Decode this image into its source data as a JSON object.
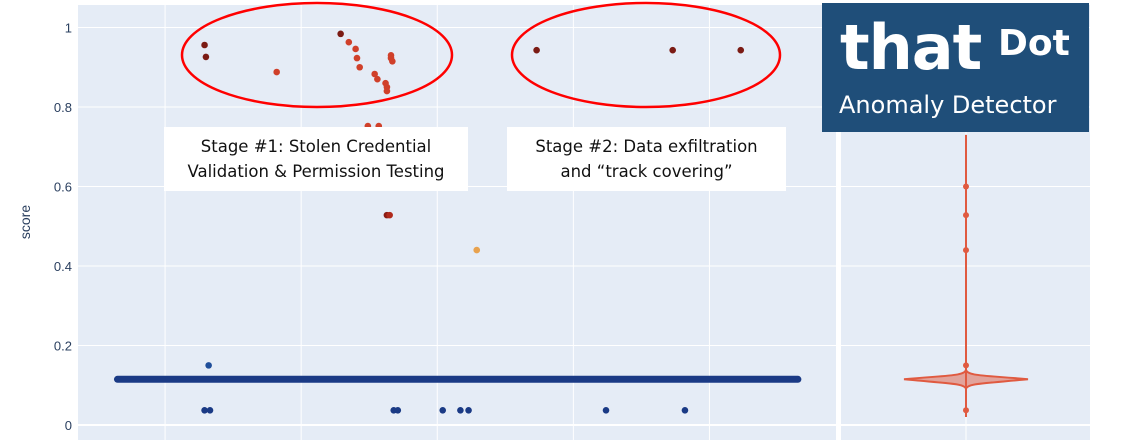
{
  "chart_data": [
    {
      "type": "scatter",
      "ylabel": "score",
      "ylim": [
        0,
        1.05
      ],
      "xlim": [
        -0.64,
        4.93
      ],
      "yticks": [
        "0",
        "0.2",
        "0.4",
        "0.6",
        "0.8",
        "1"
      ],
      "xgrid": [
        0,
        1,
        2,
        3,
        4
      ],
      "grid": true,
      "background": "#e5ecf6",
      "dense_band": {
        "y": 0.115,
        "x_from": -0.35,
        "x_to": 4.65,
        "color": "#1a3a85"
      },
      "points": [
        {
          "x": 0.29,
          "y": 0.956,
          "c": "#7b1b14"
        },
        {
          "x": 0.3,
          "y": 0.926,
          "c": "#7b1b14"
        },
        {
          "x": 1.29,
          "y": 0.984,
          "c": "#7b1b14"
        },
        {
          "x": 2.73,
          "y": 0.943,
          "c": "#7b1b14"
        },
        {
          "x": 3.73,
          "y": 0.943,
          "c": "#7b1b14"
        },
        {
          "x": 4.23,
          "y": 0.943,
          "c": "#7b1b14"
        },
        {
          "x": 0.82,
          "y": 0.888,
          "c": "#d0402a"
        },
        {
          "x": 1.35,
          "y": 0.963,
          "c": "#d0402a"
        },
        {
          "x": 1.4,
          "y": 0.946,
          "c": "#d0402a"
        },
        {
          "x": 1.41,
          "y": 0.923,
          "c": "#d0402a"
        },
        {
          "x": 1.43,
          "y": 0.9,
          "c": "#d0402a"
        },
        {
          "x": 1.54,
          "y": 0.883,
          "c": "#d0402a"
        },
        {
          "x": 1.56,
          "y": 0.87,
          "c": "#d0402a"
        },
        {
          "x": 1.62,
          "y": 0.86,
          "c": "#d0402a"
        },
        {
          "x": 1.63,
          "y": 0.85,
          "c": "#d0402a"
        },
        {
          "x": 1.63,
          "y": 0.84,
          "c": "#d0402a"
        },
        {
          "x": 1.66,
          "y": 0.93,
          "c": "#d0402a"
        },
        {
          "x": 1.66,
          "y": 0.923,
          "c": "#d0402a"
        },
        {
          "x": 1.67,
          "y": 0.915,
          "c": "#d0402a"
        },
        {
          "x": 1.49,
          "y": 0.752,
          "c": "#d0402a"
        },
        {
          "x": 1.57,
          "y": 0.752,
          "c": "#d0402a"
        },
        {
          "x": 1.63,
          "y": 0.528,
          "c": "#8a1c14"
        },
        {
          "x": 1.65,
          "y": 0.528,
          "c": "#b02a1c"
        },
        {
          "x": 2.29,
          "y": 0.44,
          "c": "#e8a24e"
        },
        {
          "x": 0.32,
          "y": 0.15,
          "c": "#1f4e9a"
        },
        {
          "x": 0.29,
          "y": 0.037,
          "c": "#1a3a85"
        },
        {
          "x": 0.33,
          "y": 0.037,
          "c": "#1a3a85"
        },
        {
          "x": 1.68,
          "y": 0.037,
          "c": "#1a3a85"
        },
        {
          "x": 1.71,
          "y": 0.037,
          "c": "#1a3a85"
        },
        {
          "x": 2.04,
          "y": 0.037,
          "c": "#1a3a85"
        },
        {
          "x": 2.17,
          "y": 0.037,
          "c": "#1a3a85"
        },
        {
          "x": 2.23,
          "y": 0.037,
          "c": "#1a3a85"
        },
        {
          "x": 3.24,
          "y": 0.037,
          "c": "#1a3a85"
        },
        {
          "x": 3.82,
          "y": 0.037,
          "c": "#1a3a85"
        }
      ]
    },
    {
      "type": "violin",
      "color": "#e05a40",
      "range": [
        0.02,
        0.73
      ],
      "median_peak": 0.115,
      "outliers": [
        0.6,
        0.528,
        0.44,
        0.15,
        0.037
      ]
    }
  ],
  "annotations": {
    "stage1": "Stage #1: Stolen Credential Validation & Permission Testing",
    "stage1_line1": "Stage #1: Stolen Credential",
    "stage1_line2": "Validation & Permission Testing",
    "stage2_line1": "Stage #2: Data exfiltration",
    "stage2_line2": "and “track covering”",
    "ellipse_color": "#ff0000"
  },
  "logo": {
    "brand": "thatDot",
    "that": "that",
    "dot": "Dot",
    "product": "Anomaly Detector",
    "color": "#1f4e79"
  }
}
